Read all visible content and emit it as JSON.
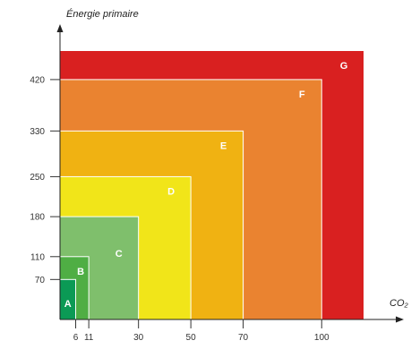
{
  "chart_data": {
    "type": "energy-label-nested-areas",
    "xlabel": "CO₂",
    "ylabel": "Énergie primaire",
    "x_ticks": [
      6,
      11,
      30,
      50,
      70,
      100
    ],
    "y_ticks": [
      70,
      110,
      180,
      250,
      330,
      420
    ],
    "xlim": [
      0,
      116
    ],
    "ylim": [
      0,
      470
    ],
    "classes": [
      {
        "label": "G",
        "x_max": 116,
        "y_max": 470,
        "color": "#d92020"
      },
      {
        "label": "F",
        "x_max": 100,
        "y_max": 420,
        "color": "#ea8330"
      },
      {
        "label": "E",
        "x_max": 70,
        "y_max": 330,
        "color": "#f0b212"
      },
      {
        "label": "D",
        "x_max": 50,
        "y_max": 250,
        "color": "#f1e519"
      },
      {
        "label": "C",
        "x_max": 30,
        "y_max": 180,
        "color": "#7fbf6c"
      },
      {
        "label": "B",
        "x_max": 11,
        "y_max": 110,
        "color": "#4fae44"
      },
      {
        "label": "A",
        "x_max": 6,
        "y_max": 70,
        "color": "#0b9a55"
      }
    ]
  }
}
